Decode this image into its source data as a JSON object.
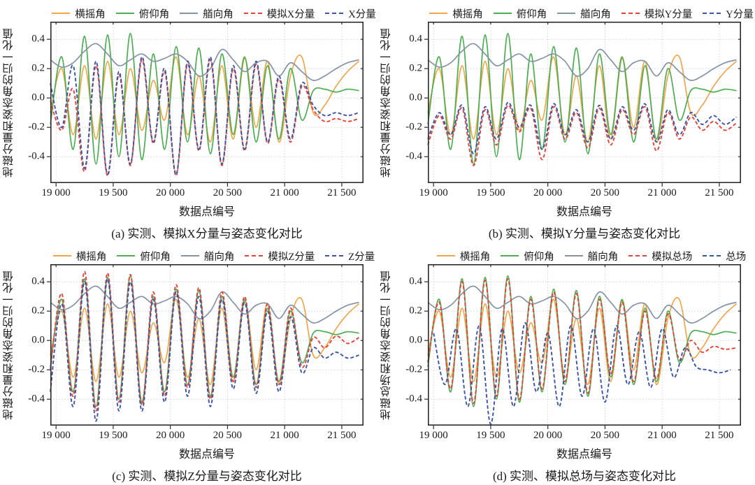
{
  "axis": {
    "x_ticks": [
      "19 000",
      "19 500",
      "20 000",
      "20 500",
      "21 000",
      "21 500"
    ],
    "x_tick_values": [
      19000,
      19500,
      20000,
      20500,
      21000,
      21500
    ],
    "y_ticks": [
      "0.4",
      "0.2",
      "0.0",
      "-0.2",
      "-0.4"
    ],
    "y_tick_values": [
      0.4,
      0.2,
      0.0,
      -0.2,
      -0.4
    ],
    "x_range": [
      18950,
      21690
    ],
    "y_range": [
      -0.58,
      0.52
    ],
    "grid": "dotted, at major ticks",
    "legend_position": "top"
  },
  "colors": {
    "roll": "#F2A64A",
    "pitch": "#4BAF52",
    "heading": "#8494A6",
    "simulated": "#E6413A",
    "measured": "#3A54A8",
    "frame": "#2b2b2b",
    "gridline": "#c9c9c9"
  },
  "chart_data": [
    {
      "id": "a",
      "type": "line",
      "caption": "(a) 实测、模拟X分量与姿态变化对比",
      "ylabel": "地磁分量和姿态角的归一化值",
      "xlabel": "数据点编号",
      "x_start": 18950,
      "x_step": 100,
      "series": [
        {
          "name": "横摇角",
          "color": "#F2A64A",
          "style": "solid",
          "values": [
            -0.1,
            0.2,
            -0.25,
            0.22,
            -0.28,
            0.25,
            -0.25,
            0.2,
            -0.22,
            0.12,
            -0.15,
            0.28,
            -0.25,
            0.15,
            -0.3,
            0.22,
            -0.28,
            0.27,
            -0.2,
            0.25,
            -0.3,
            0.15,
            0.28,
            -0.1,
            -0.05,
            0.08,
            0.18,
            0.25
          ]
        },
        {
          "name": "俯仰角",
          "color": "#4BAF52",
          "style": "solid",
          "values": [
            -0.18,
            0.28,
            -0.35,
            0.42,
            -0.45,
            0.43,
            -0.4,
            0.44,
            -0.42,
            0.3,
            -0.35,
            0.35,
            -0.3,
            0.34,
            -0.38,
            0.3,
            -0.25,
            0.28,
            -0.3,
            0.22,
            -0.28,
            0.2,
            -0.15,
            0.05,
            0.06,
            0.04,
            0.06,
            0.05
          ]
        },
        {
          "name": "艏向角",
          "color": "#8494A6",
          "style": "solid",
          "values": [
            0.26,
            0.21,
            0.24,
            0.32,
            0.37,
            0.3,
            0.22,
            0.26,
            0.3,
            0.25,
            0.27,
            0.3,
            0.25,
            0.15,
            0.2,
            0.33,
            0.26,
            0.18,
            0.24,
            0.25,
            0.15,
            0.24,
            0.18,
            0.12,
            0.15,
            0.2,
            0.24,
            0.26
          ]
        },
        {
          "name": "模拟X分量",
          "color": "#E6413A",
          "style": "dashed",
          "values": [
            -0.02,
            -0.22,
            0.06,
            -0.5,
            0.22,
            -0.53,
            0.16,
            -0.46,
            0.26,
            -0.31,
            0.18,
            -0.53,
            0.23,
            -0.36,
            0.26,
            -0.46,
            0.2,
            -0.36,
            0.23,
            -0.31,
            0.13,
            -0.3,
            0.08,
            -0.08,
            -0.16,
            -0.14,
            -0.16,
            -0.14
          ]
        },
        {
          "name": "X分量",
          "color": "#3A54A8",
          "style": "dashed",
          "values": [
            0.1,
            -0.2,
            0.22,
            -0.48,
            0.25,
            -0.52,
            0.18,
            -0.45,
            0.28,
            -0.3,
            0.2,
            -0.52,
            0.25,
            -0.35,
            0.28,
            -0.45,
            0.22,
            -0.35,
            0.25,
            -0.3,
            0.15,
            -0.28,
            0.1,
            -0.05,
            -0.12,
            -0.1,
            -0.12,
            -0.1
          ]
        }
      ]
    },
    {
      "id": "b",
      "type": "line",
      "caption": "(b) 实测、模拟Y分量与姿态变化对比",
      "ylabel": "地磁分量和姿态角的归一化值",
      "xlabel": "数据点编号",
      "x_start": 18950,
      "x_step": 100,
      "series": [
        {
          "name": "横摇角",
          "color": "#F2A64A",
          "style": "solid",
          "values": [
            -0.1,
            0.2,
            -0.25,
            0.22,
            -0.28,
            0.25,
            -0.25,
            0.2,
            -0.22,
            0.12,
            -0.15,
            0.28,
            -0.25,
            0.15,
            -0.3,
            0.22,
            -0.28,
            0.27,
            -0.2,
            0.25,
            -0.3,
            0.15,
            0.28,
            -0.1,
            -0.05,
            0.08,
            0.18,
            0.25
          ]
        },
        {
          "name": "俯仰角",
          "color": "#4BAF52",
          "style": "solid",
          "values": [
            -0.18,
            0.28,
            -0.35,
            0.42,
            -0.45,
            0.43,
            -0.4,
            0.44,
            -0.42,
            0.3,
            -0.35,
            0.35,
            -0.3,
            0.34,
            -0.38,
            0.3,
            -0.25,
            0.28,
            -0.3,
            0.22,
            -0.28,
            0.2,
            -0.15,
            0.05,
            0.06,
            0.04,
            0.06,
            0.05
          ]
        },
        {
          "name": "艏向角",
          "color": "#8494A6",
          "style": "solid",
          "values": [
            0.26,
            0.21,
            0.24,
            0.32,
            0.37,
            0.3,
            0.22,
            0.26,
            0.3,
            0.25,
            0.27,
            0.3,
            0.25,
            0.15,
            0.2,
            0.33,
            0.26,
            0.18,
            0.24,
            0.25,
            0.15,
            0.24,
            0.18,
            0.12,
            0.15,
            0.2,
            0.24,
            0.26
          ]
        },
        {
          "name": "模拟Y分量",
          "color": "#E6413A",
          "style": "dashed",
          "values": [
            -0.32,
            -0.12,
            -0.28,
            -0.07,
            -0.46,
            -0.08,
            -0.32,
            -0.05,
            -0.23,
            -0.07,
            -0.42,
            -0.06,
            -0.28,
            -0.1,
            -0.34,
            -0.07,
            -0.32,
            -0.08,
            -0.25,
            -0.06,
            -0.36,
            -0.1,
            -0.28,
            -0.13,
            -0.22,
            -0.16,
            -0.22,
            -0.17
          ]
        },
        {
          "name": "Y分量",
          "color": "#3A54A8",
          "style": "dashed",
          "values": [
            -0.28,
            -0.1,
            -0.25,
            -0.05,
            -0.38,
            -0.06,
            -0.28,
            -0.03,
            -0.2,
            -0.05,
            -0.35,
            -0.04,
            -0.25,
            -0.08,
            -0.3,
            -0.05,
            -0.28,
            -0.06,
            -0.22,
            -0.04,
            -0.3,
            -0.08,
            -0.25,
            -0.1,
            -0.18,
            -0.12,
            -0.18,
            -0.13
          ]
        }
      ]
    },
    {
      "id": "c",
      "type": "line",
      "caption": "(c) 实测、模拟Z分量与姿态变化对比",
      "ylabel": "地磁分量和姿态角的归一化值",
      "xlabel": "数据点编号",
      "x_start": 18950,
      "x_step": 100,
      "series": [
        {
          "name": "横摇角",
          "color": "#F2A64A",
          "style": "solid",
          "values": [
            -0.1,
            0.2,
            -0.25,
            0.22,
            -0.28,
            0.25,
            -0.25,
            0.2,
            -0.22,
            0.12,
            -0.15,
            0.28,
            -0.25,
            0.15,
            -0.3,
            0.22,
            -0.28,
            0.27,
            -0.2,
            0.25,
            -0.3,
            0.15,
            0.28,
            -0.1,
            -0.05,
            0.08,
            0.18,
            0.25
          ]
        },
        {
          "name": "俯仰角",
          "color": "#4BAF52",
          "style": "solid",
          "values": [
            -0.18,
            0.28,
            -0.35,
            0.42,
            -0.45,
            0.43,
            -0.4,
            0.44,
            -0.42,
            0.3,
            -0.35,
            0.35,
            -0.3,
            0.34,
            -0.38,
            0.3,
            -0.25,
            0.28,
            -0.3,
            0.22,
            -0.28,
            0.2,
            -0.15,
            0.05,
            0.06,
            0.04,
            0.06,
            0.05
          ]
        },
        {
          "name": "艏向角",
          "color": "#8494A6",
          "style": "solid",
          "values": [
            0.26,
            0.21,
            0.24,
            0.32,
            0.37,
            0.3,
            0.22,
            0.26,
            0.3,
            0.25,
            0.27,
            0.3,
            0.25,
            0.15,
            0.2,
            0.33,
            0.26,
            0.18,
            0.24,
            0.25,
            0.15,
            0.24,
            0.18,
            0.12,
            0.15,
            0.2,
            0.24,
            0.26
          ]
        },
        {
          "name": "模拟Z分量",
          "color": "#E6413A",
          "style": "dashed",
          "values": [
            -0.2,
            0.32,
            -0.38,
            0.47,
            -0.48,
            0.46,
            -0.42,
            0.45,
            -0.44,
            0.33,
            -0.38,
            0.38,
            -0.32,
            0.36,
            -0.4,
            0.33,
            -0.28,
            0.3,
            -0.32,
            0.25,
            -0.3,
            0.22,
            -0.18,
            0.02,
            -0.05,
            0.03,
            -0.02,
            0.02
          ]
        },
        {
          "name": "Z分量",
          "color": "#3A54A8",
          "style": "dashed",
          "values": [
            -0.35,
            0.25,
            -0.45,
            0.4,
            -0.55,
            0.42,
            -0.48,
            0.4,
            -0.48,
            0.28,
            -0.42,
            0.33,
            -0.38,
            0.3,
            -0.45,
            0.28,
            -0.33,
            0.26,
            -0.36,
            0.2,
            -0.35,
            0.16,
            -0.22,
            -0.05,
            -0.12,
            -0.08,
            -0.12,
            -0.1
          ]
        }
      ]
    },
    {
      "id": "d",
      "type": "line",
      "caption": "(d) 实测、模拟总场与姿态变化对比",
      "ylabel": "地磁总场和姿态角的归一化值",
      "xlabel": "数据点编号",
      "x_start": 18950,
      "x_step": 100,
      "series": [
        {
          "name": "横摇角",
          "color": "#F2A64A",
          "style": "solid",
          "values": [
            -0.1,
            0.2,
            -0.25,
            0.22,
            -0.28,
            0.25,
            -0.25,
            0.2,
            -0.22,
            0.12,
            -0.15,
            0.28,
            -0.25,
            0.15,
            -0.3,
            0.22,
            -0.28,
            0.27,
            -0.2,
            0.25,
            -0.3,
            0.15,
            0.28,
            -0.1,
            -0.05,
            0.08,
            0.18,
            0.25
          ]
        },
        {
          "name": "俯仰角",
          "color": "#4BAF52",
          "style": "solid",
          "values": [
            -0.18,
            0.28,
            -0.35,
            0.42,
            -0.45,
            0.43,
            -0.4,
            0.44,
            -0.42,
            0.3,
            -0.35,
            0.35,
            -0.3,
            0.34,
            -0.38,
            0.3,
            -0.25,
            0.28,
            -0.3,
            0.22,
            -0.28,
            0.2,
            -0.15,
            0.05,
            0.06,
            0.04,
            0.06,
            0.05
          ]
        },
        {
          "name": "艏向角",
          "color": "#8494A6",
          "style": "solid",
          "values": [
            0.26,
            0.21,
            0.24,
            0.32,
            0.37,
            0.3,
            0.22,
            0.26,
            0.3,
            0.25,
            0.27,
            0.3,
            0.25,
            0.15,
            0.2,
            0.33,
            0.26,
            0.18,
            0.24,
            0.25,
            0.15,
            0.24,
            0.18,
            0.12,
            0.15,
            0.2,
            0.24,
            0.26
          ]
        },
        {
          "name": "模拟总场",
          "color": "#E6413A",
          "style": "dashed",
          "values": [
            -0.15,
            0.26,
            -0.33,
            0.4,
            -0.43,
            0.41,
            -0.38,
            0.42,
            -0.4,
            0.28,
            -0.33,
            0.33,
            -0.28,
            0.32,
            -0.36,
            0.28,
            -0.23,
            0.26,
            -0.28,
            0.2,
            -0.26,
            0.18,
            -0.13,
            0.0,
            -0.08,
            -0.04,
            -0.06,
            -0.05
          ]
        },
        {
          "name": "总场",
          "color": "#3A54A8",
          "style": "dashed",
          "x_start": 19000,
          "values": [
            0.05,
            -0.3,
            0.08,
            -0.45,
            0.1,
            -0.57,
            0.08,
            -0.45,
            0.12,
            -0.35,
            0.05,
            -0.45,
            0.1,
            -0.38,
            0.08,
            -0.42,
            0.1,
            -0.3,
            0.06,
            -0.32,
            0.08,
            -0.25,
            -0.05,
            -0.18,
            -0.2,
            -0.22,
            -0.2
          ]
        }
      ]
    }
  ]
}
